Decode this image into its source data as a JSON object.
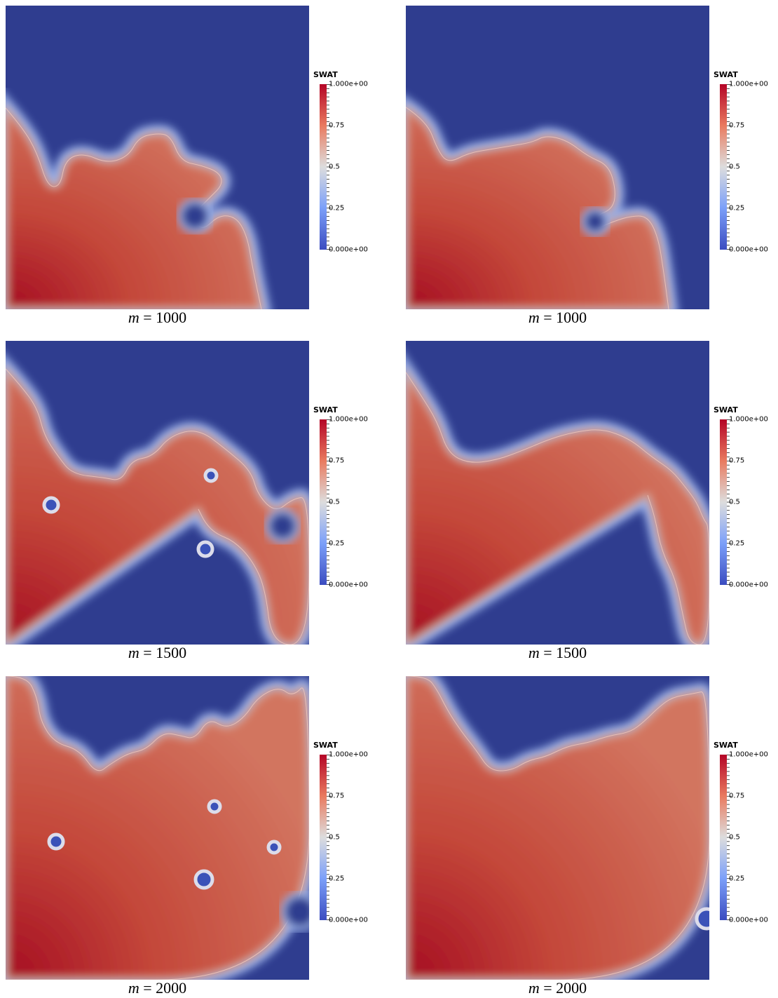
{
  "colorbar": {
    "title": "SWAT",
    "labels": [
      "1.000e+00",
      "0.75",
      "0.5",
      "0.25",
      "0.000e+00"
    ],
    "range": [
      0,
      1
    ],
    "colormap": [
      "#3b4cc0",
      "#7b9ff9",
      "#dddddd",
      "#e97a5f",
      "#b40426"
    ]
  },
  "colors": {
    "background_unswept": "#2f3d8f",
    "swept": "#c4513f"
  },
  "panels": [
    {
      "var": "m",
      "eq": "=",
      "value": "1000"
    },
    {
      "var": "m",
      "eq": "=",
      "value": "1000"
    },
    {
      "var": "m",
      "eq": "=",
      "value": "1500"
    },
    {
      "var": "m",
      "eq": "=",
      "value": "1500"
    },
    {
      "var": "m",
      "eq": "=",
      "value": "2000"
    },
    {
      "var": "m",
      "eq": "=",
      "value": "2000"
    }
  ],
  "chart_data": [
    {
      "type": "heatmap",
      "variable": "SWAT",
      "caption": "m = 1000",
      "zlim": [
        0,
        1
      ]
    },
    {
      "type": "heatmap",
      "variable": "SWAT",
      "caption": "m = 1000",
      "zlim": [
        0,
        1
      ]
    },
    {
      "type": "heatmap",
      "variable": "SWAT",
      "caption": "m = 1500",
      "zlim": [
        0,
        1
      ]
    },
    {
      "type": "heatmap",
      "variable": "SWAT",
      "caption": "m = 1500",
      "zlim": [
        0,
        1
      ]
    },
    {
      "type": "heatmap",
      "variable": "SWAT",
      "caption": "m = 2000",
      "zlim": [
        0,
        1
      ]
    },
    {
      "type": "heatmap",
      "variable": "SWAT",
      "caption": "m = 2000",
      "zlim": [
        0,
        1
      ]
    }
  ]
}
